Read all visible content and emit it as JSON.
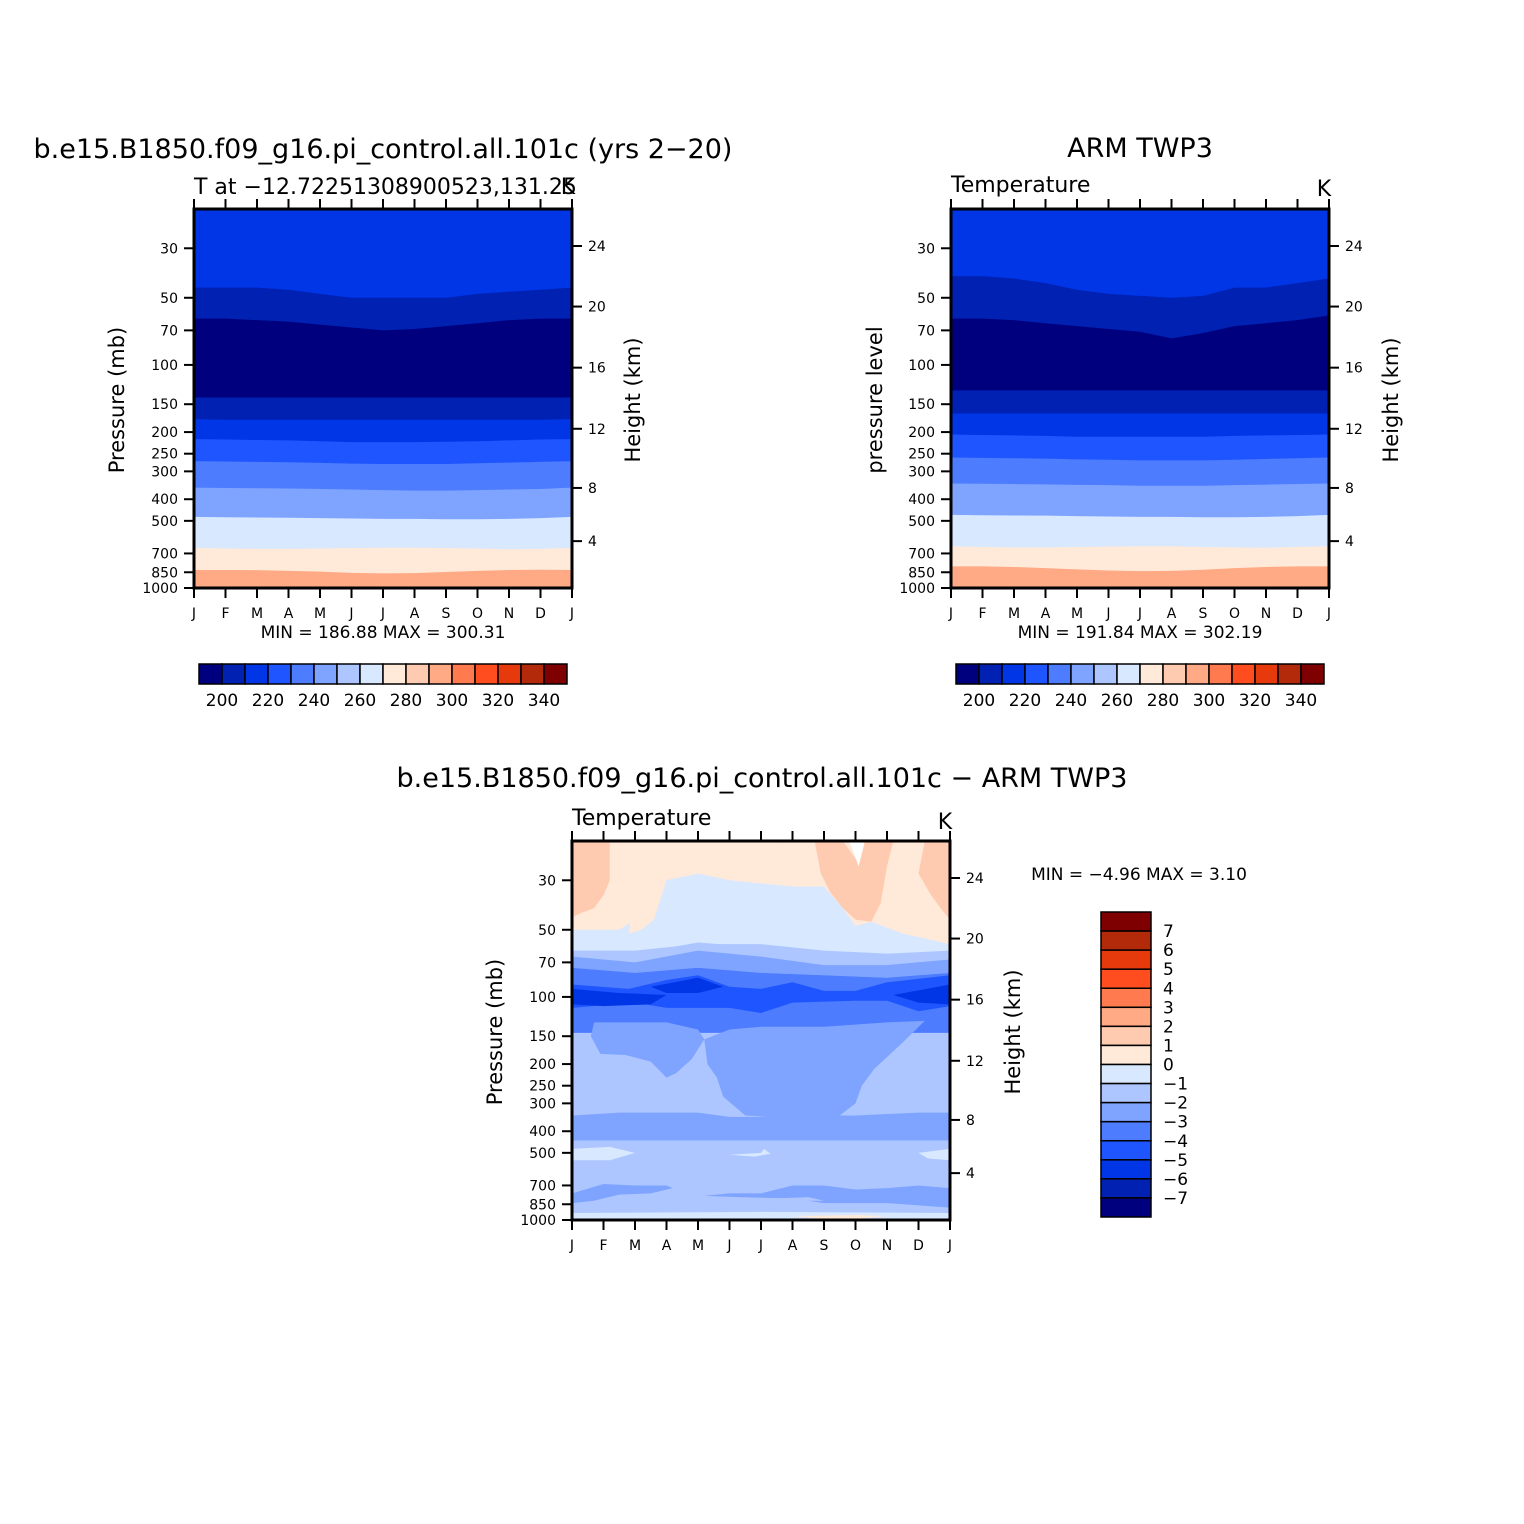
{
  "colors": {
    "abs_levels": [
      "#00007f",
      "#0021b2",
      "#0036e6",
      "#1f55ff",
      "#4d7cff",
      "#7fa4ff",
      "#adc6ff",
      "#d8e8ff",
      "#ffe9d9",
      "#ffcbb0",
      "#ffa985",
      "#ff7a4f",
      "#ff4d1f",
      "#e63a0d",
      "#b22a0a",
      "#7f0000"
    ],
    "diff_levels": [
      "#00007f",
      "#0021b2",
      "#0036e6",
      "#1f55ff",
      "#4d7cff",
      "#7fa4ff",
      "#adc6ff",
      "#d8e8ff",
      "#ffe9d9",
      "#ffcbb0",
      "#ffa985",
      "#ff7a4f",
      "#ff4d1f",
      "#e63a0d",
      "#b22a0a",
      "#7f0000"
    ]
  },
  "chart_data": [
    {
      "type": "heatmap",
      "title": "b.e15.B1850.f09_g16.pi_control.all.101c (yrs 2−20)",
      "subtitle_left": "T at −12.72251308900523,131.25",
      "subtitle_right": "K",
      "xlabel": "",
      "ylabel": "Pressure (mb)",
      "ylabel_right": "Height (km)",
      "x_ticks": [
        "J",
        "F",
        "M",
        "A",
        "M",
        "J",
        "J",
        "A",
        "S",
        "O",
        "N",
        "D",
        "J"
      ],
      "y_ticks": [
        "30",
        "50",
        "70",
        "100",
        "150",
        "200",
        "250",
        "300",
        "400",
        "500",
        "700",
        "850",
        "1000"
      ],
      "y_ticks_right": [
        "24",
        "20",
        "16",
        "12",
        "8",
        "4"
      ],
      "min_max_text": "MIN =  186.88 MAX =  300.31",
      "colorbar_labels": [
        "200",
        "220",
        "240",
        "260",
        "280",
        "300",
        "320",
        "340"
      ],
      "levels": [
        190,
        200,
        210,
        220,
        230,
        240,
        250,
        260,
        270,
        280,
        290,
        300,
        310,
        320,
        330,
        340,
        350
      ],
      "band_boundaries_mb": [
        {
          "level": 210,
          "values": [
            45,
            45,
            45,
            46,
            48,
            50,
            50,
            50,
            50,
            48,
            47,
            46,
            45
          ]
        },
        {
          "level": 200,
          "values": [
            62,
            62,
            63,
            64,
            66,
            68,
            70,
            69,
            67,
            65,
            63,
            62,
            62
          ]
        },
        {
          "level": 220,
          "values": [
            140,
            140,
            140,
            140,
            140,
            140,
            140,
            140,
            140,
            140,
            140,
            140,
            140
          ]
        },
        {
          "level": 230,
          "values": [
            175,
            176,
            176,
            176,
            176,
            176,
            176,
            176,
            176,
            176,
            176,
            176,
            175
          ]
        },
        {
          "level": 240,
          "values": [
            215,
            216,
            217,
            218,
            220,
            222,
            222,
            222,
            221,
            220,
            218,
            216,
            215
          ]
        },
        {
          "level": 250,
          "values": [
            270,
            271,
            272,
            273,
            275,
            277,
            278,
            278,
            278,
            276,
            274,
            272,
            270
          ]
        },
        {
          "level": 260,
          "values": [
            355,
            356,
            357,
            358,
            360,
            362,
            364,
            366,
            366,
            364,
            362,
            360,
            355
          ]
        },
        {
          "level": 270,
          "values": [
            480,
            482,
            483,
            484,
            486,
            488,
            490,
            490,
            492,
            492,
            490,
            486,
            480
          ]
        },
        {
          "level": 280,
          "values": [
            660,
            665,
            668,
            668,
            665,
            662,
            660,
            660,
            662,
            665,
            670,
            668,
            660
          ]
        },
        {
          "level": 290,
          "values": [
            830,
            830,
            832,
            838,
            845,
            855,
            860,
            858,
            848,
            838,
            830,
            828,
            830
          ]
        }
      ]
    },
    {
      "type": "heatmap",
      "title": "ARM TWP3",
      "subtitle_left": "Temperature",
      "subtitle_right": "K",
      "xlabel": "",
      "ylabel": "pressure level",
      "ylabel_right": "Height (km)",
      "x_ticks": [
        "J",
        "F",
        "M",
        "A",
        "M",
        "J",
        "J",
        "A",
        "S",
        "O",
        "N",
        "D",
        "J"
      ],
      "y_ticks": [
        "30",
        "50",
        "70",
        "100",
        "150",
        "200",
        "250",
        "300",
        "400",
        "500",
        "700",
        "850",
        "1000"
      ],
      "y_ticks_right": [
        "24",
        "20",
        "16",
        "12",
        "8",
        "4"
      ],
      "min_max_text": "MIN =  191.84 MAX =  302.19",
      "colorbar_labels": [
        "200",
        "220",
        "240",
        "260",
        "280",
        "300",
        "320",
        "340"
      ],
      "levels": [
        190,
        200,
        210,
        220,
        230,
        240,
        250,
        260,
        270,
        280,
        290,
        300,
        310,
        320,
        330,
        340,
        350
      ],
      "band_boundaries_mb": [
        {
          "level": 210,
          "values": [
            40,
            40,
            41,
            43,
            46,
            48,
            49,
            50,
            49,
            45,
            45,
            43,
            41
          ]
        },
        {
          "level": 200,
          "values": [
            62,
            62,
            63,
            65,
            67,
            69,
            71,
            76,
            72,
            67,
            65,
            63,
            60
          ]
        },
        {
          "level": 220,
          "values": [
            130,
            130,
            130,
            130,
            130,
            130,
            130,
            130,
            130,
            130,
            130,
            130,
            130
          ]
        },
        {
          "level": 230,
          "values": [
            165,
            165,
            165,
            165,
            165,
            165,
            165,
            165,
            165,
            165,
            165,
            165,
            165
          ]
        },
        {
          "level": 240,
          "values": [
            205,
            206,
            207,
            208,
            210,
            210,
            210,
            210,
            210,
            208,
            207,
            206,
            205
          ]
        },
        {
          "level": 250,
          "values": [
            260,
            261,
            262,
            263,
            265,
            266,
            268,
            268,
            268,
            266,
            264,
            262,
            260
          ]
        },
        {
          "level": 260,
          "values": [
            340,
            341,
            342,
            343,
            345,
            346,
            348,
            348,
            348,
            346,
            344,
            342,
            340
          ]
        },
        {
          "level": 270,
          "values": [
            470,
            472,
            473,
            474,
            476,
            478,
            480,
            480,
            482,
            482,
            480,
            476,
            470
          ]
        },
        {
          "level": 280,
          "values": [
            650,
            655,
            658,
            658,
            655,
            652,
            650,
            650,
            655,
            658,
            660,
            655,
            650
          ]
        },
        {
          "level": 290,
          "values": [
            800,
            800,
            805,
            815,
            825,
            835,
            840,
            838,
            828,
            815,
            805,
            800,
            800
          ]
        }
      ]
    },
    {
      "type": "heatmap",
      "title": "b.e15.B1850.f09_g16.pi_control.all.101c − ARM TWP3",
      "subtitle_left": "Temperature",
      "subtitle_right": "K",
      "xlabel": "",
      "ylabel": "Pressure (mb)",
      "ylabel_right": "Height (km)",
      "x_ticks": [
        "J",
        "F",
        "M",
        "A",
        "M",
        "J",
        "J",
        "A",
        "S",
        "O",
        "N",
        "D",
        "J"
      ],
      "y_ticks": [
        "30",
        "50",
        "70",
        "100",
        "150",
        "200",
        "250",
        "300",
        "400",
        "500",
        "700",
        "850",
        "1000"
      ],
      "y_ticks_right": [
        "24",
        "20",
        "16",
        "12",
        "8",
        "4"
      ],
      "min_max_text": "MIN =   −4.96 MAX =    3.10",
      "colorbar_labels": [
        "7",
        "6",
        "5",
        "4",
        "3",
        "2",
        "1",
        "0",
        "−1",
        "−2",
        "−3",
        "−4",
        "−5",
        "−6",
        "−7"
      ],
      "levels": [
        -8,
        -7,
        -6,
        -5,
        -4,
        -3,
        -2,
        -1,
        0,
        1,
        2,
        3,
        4,
        5,
        6,
        7,
        8
      ]
    }
  ]
}
